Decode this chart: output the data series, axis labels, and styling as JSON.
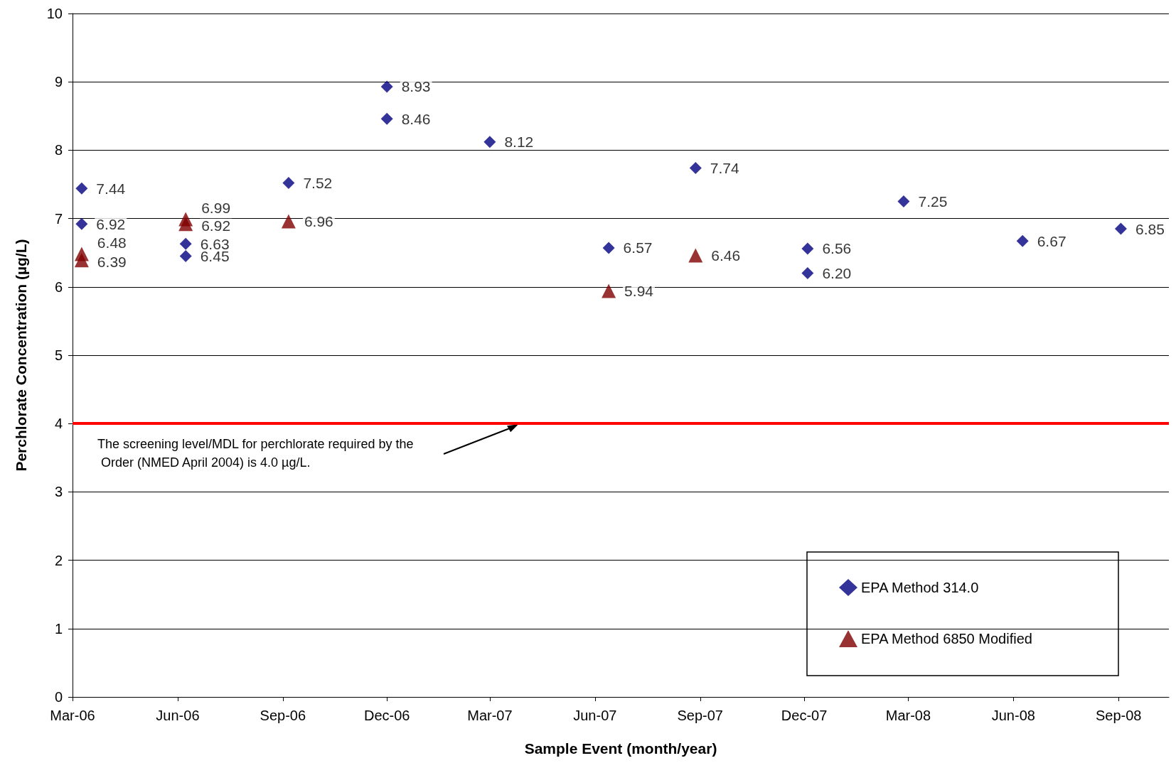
{
  "chart_data": {
    "type": "scatter",
    "xlabel": "Sample Event (month/year)",
    "ylabel": "Perchlorate Concentration (µg/L)",
    "xlim": [
      "2006-03",
      "2008-10-15"
    ],
    "xticks": [
      {
        "value": "2006-03",
        "label": "Mar-06"
      },
      {
        "value": "2006-06",
        "label": "Jun-06"
      },
      {
        "value": "2006-09",
        "label": "Sep-06"
      },
      {
        "value": "2006-12",
        "label": "Dec-06"
      },
      {
        "value": "2007-03",
        "label": "Mar-07"
      },
      {
        "value": "2007-06",
        "label": "Jun-07"
      },
      {
        "value": "2007-09",
        "label": "Sep-07"
      },
      {
        "value": "2007-12",
        "label": "Dec-07"
      },
      {
        "value": "2008-03",
        "label": "Mar-08"
      },
      {
        "value": "2008-06",
        "label": "Jun-08"
      },
      {
        "value": "2008-09",
        "label": "Sep-08"
      }
    ],
    "ylim": [
      0,
      10
    ],
    "yticks": [
      0,
      1,
      2,
      3,
      4,
      5,
      6,
      7,
      8,
      9,
      10
    ],
    "grid": "y",
    "legend": "bottom right",
    "series": [
      {
        "name": "EPA Method 314.0",
        "color": "#000080",
        "marker": "diamond",
        "x": [
          "2006-03-09",
          "2006-03-09",
          "2006-06-08",
          "2006-06-08",
          "2006-09-06",
          "2006-12-01",
          "2006-12-01",
          "2007-03-01",
          "2007-06-13",
          "2007-08-28",
          "2007-12-04",
          "2007-12-04",
          "2008-02-26",
          "2008-06-09",
          "2008-09-03"
        ],
        "values": [
          7.44,
          6.92,
          6.63,
          6.45,
          7.52,
          8.93,
          8.46,
          8.12,
          6.57,
          7.74,
          6.56,
          6.2,
          7.25,
          6.67,
          6.85
        ],
        "value_labels": [
          "7.44",
          "6.92",
          "6.63",
          "6.45",
          "7.52",
          "8.93",
          "8.46",
          "8.12",
          "6.57",
          "7.74",
          "6.56",
          "6.20",
          "7.25",
          "6.67",
          "6.85"
        ]
      },
      {
        "name": "EPA Method 6850 Modified",
        "color": "#800000",
        "marker": "triangle",
        "x": [
          "2006-03-09",
          "2006-03-09",
          "2006-06-08",
          "2006-06-08",
          "2006-09-06",
          "2007-06-13",
          "2007-08-28"
        ],
        "values": [
          6.48,
          6.39,
          6.99,
          6.92,
          6.96,
          5.94,
          6.46
        ],
        "value_labels": [
          "6.48",
          "6.39",
          "6.99",
          "6.92",
          "6.96",
          "5.94",
          "6.46"
        ]
      }
    ],
    "ref_lines": [
      {
        "axis": "y",
        "value": 4,
        "color": "#ff0000"
      }
    ],
    "annotations": [
      "The screening level/MDL for perchlorate required by the  Order (NMED April 2004) is 4.0 µg/L."
    ]
  }
}
